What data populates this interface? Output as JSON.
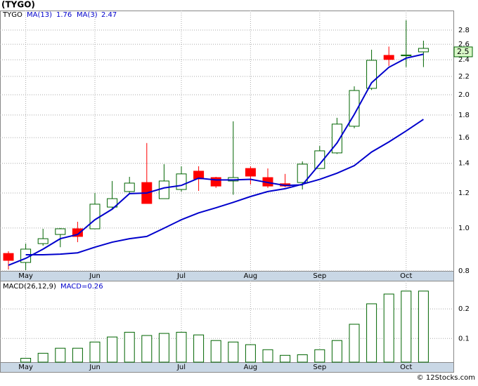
{
  "chart_data": [
    {
      "type": "candlestick",
      "title": "(TYGO)",
      "symbol": "TYGO",
      "log": true,
      "grid": true,
      "categories": [
        null,
        "May",
        null,
        null,
        null,
        "Jun",
        null,
        null,
        null,
        null,
        "Jul",
        null,
        null,
        null,
        "Aug",
        null,
        null,
        null,
        "Sep",
        null,
        null,
        null,
        null,
        "Oct",
        null
      ],
      "open": [
        0.876,
        0.836,
        0.922,
        0.967,
        0.996,
        0.996,
        1.115,
        1.209,
        1.267,
        1.165,
        1.222,
        1.344,
        1.3,
        1.277,
        1.363,
        1.3,
        1.259,
        1.267,
        1.363,
        1.478,
        1.698,
        2.068,
        2.455,
        2.45,
        2.5
      ],
      "high": [
        0.886,
        0.922,
        0.996,
        1.0,
        1.033,
        1.2,
        1.277,
        1.305,
        1.556,
        1.394,
        1.379,
        1.379,
        1.305,
        1.742,
        1.379,
        1.363,
        1.325,
        1.414,
        1.532,
        1.774,
        2.09,
        2.528,
        2.57,
        2.947,
        2.65
      ],
      "low": [
        0.806,
        0.803,
        0.912,
        0.905,
        0.929,
        0.996,
        1.107,
        1.193,
        1.136,
        1.165,
        1.209,
        1.213,
        1.232,
        1.189,
        1.254,
        1.232,
        1.236,
        1.222,
        1.363,
        1.47,
        1.68,
        2.05,
        2.324,
        2.31,
        2.31
      ],
      "close": [
        0.845,
        0.896,
        0.946,
        0.996,
        0.957,
        1.132,
        1.165,
        1.263,
        1.136,
        1.277,
        1.325,
        1.291,
        1.244,
        1.3,
        1.31,
        1.244,
        1.244,
        1.394,
        1.494,
        1.717,
        2.045,
        2.393,
        2.403,
        2.46,
        2.546
      ],
      "up_color": "#006400",
      "down_color": "#ff0000",
      "series": [
        {
          "name": "MA(13)",
          "color": "#0000cc",
          "values": [
            null,
            0.87,
            0.87,
            0.873,
            0.879,
            0.905,
            0.929,
            0.946,
            0.957,
            0.999,
            1.044,
            1.082,
            1.111,
            1.143,
            1.178,
            1.209,
            1.227,
            1.256,
            1.288,
            1.33,
            1.383,
            1.485,
            1.565,
            1.657,
            1.76
          ]
        },
        {
          "name": "MA(3)",
          "color": "#0000cc",
          "values": [
            0.824,
            0.854,
            0.896,
            0.946,
            0.967,
            1.044,
            1.103,
            1.196,
            1.2,
            1.232,
            1.248,
            1.296,
            1.284,
            1.284,
            1.288,
            1.267,
            1.248,
            1.252,
            1.394,
            1.556,
            1.806,
            2.129,
            2.307,
            2.42,
            2.47
          ]
        }
      ],
      "current_price": 2.5,
      "ylim": [
        0.8,
        3.1
      ],
      "yticks": [
        0.8,
        {
          "value": 1,
          "label": "1.0"
        },
        1.2,
        1.4,
        1.6,
        1.8,
        {
          "value": 2,
          "label": "2.0"
        },
        2.2,
        2.4,
        2.6,
        2.8
      ]
    },
    {
      "type": "bar",
      "title": "MACD(26,12,9)",
      "macd_label": "MACD=0.26",
      "grid": true,
      "color": "#006400",
      "values": [
        null,
        0.033,
        0.05,
        0.067,
        0.067,
        0.088,
        0.105,
        0.121,
        0.11,
        0.117,
        0.121,
        0.112,
        0.093,
        0.088,
        0.079,
        0.062,
        0.043,
        0.045,
        0.062,
        0.093,
        0.148,
        0.217,
        0.25,
        0.26,
        0.26
      ],
      "ylim": [
        0.02,
        0.295
      ],
      "yticks": [
        0.1,
        0.2
      ]
    }
  ],
  "footer": "© 12Stocks.com"
}
